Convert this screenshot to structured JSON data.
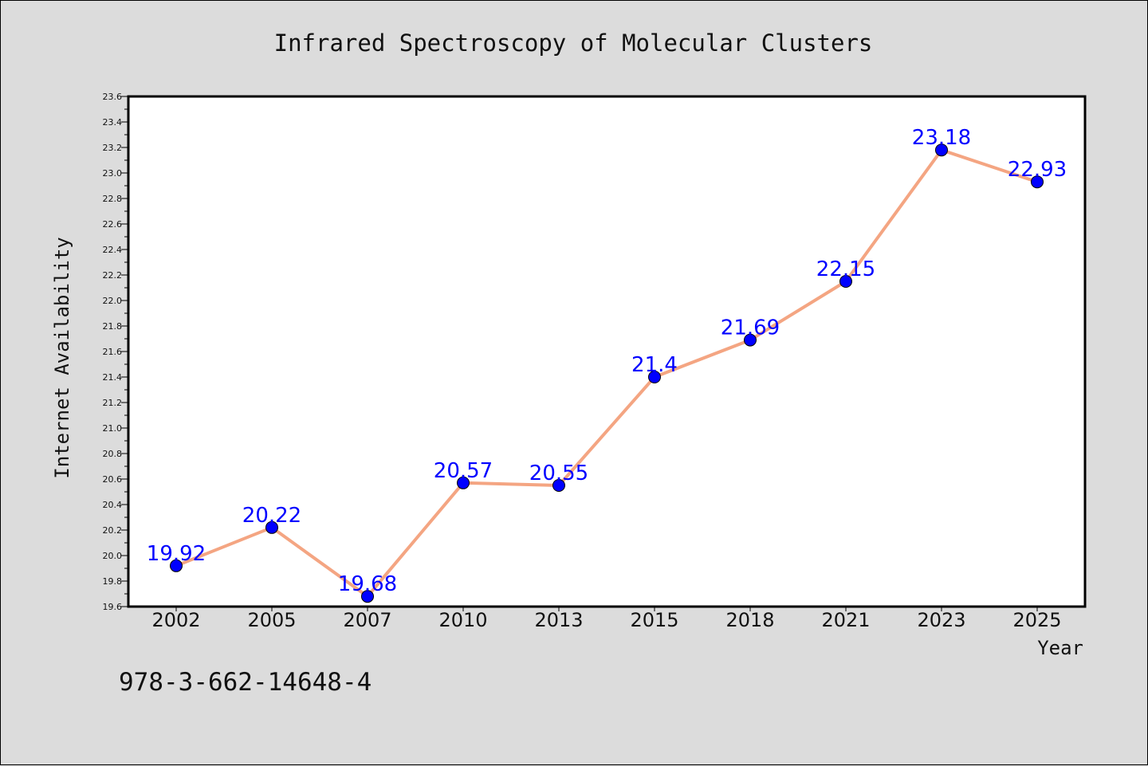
{
  "chart_data": {
    "type": "line",
    "title": "Infrared Spectroscopy of Molecular Clusters",
    "xlabel": "Year",
    "ylabel": "Internet Availability",
    "categories": [
      "2002",
      "2005",
      "2007",
      "2010",
      "2013",
      "2015",
      "2018",
      "2021",
      "2023",
      "2025"
    ],
    "values": [
      19.92,
      20.22,
      19.68,
      20.57,
      20.55,
      21.4,
      21.69,
      22.15,
      23.18,
      22.93
    ],
    "data_labels": [
      "19.92",
      "20.22",
      "19.68",
      "20.57",
      "20.55",
      "21.4",
      "21.69",
      "22.15",
      "23.18",
      "22.93"
    ],
    "ylim": [
      19.6,
      23.6
    ],
    "yticks": [
      "19.6",
      "19.8",
      "20.0",
      "20.2",
      "20.4",
      "20.6",
      "20.8",
      "21.0",
      "21.2",
      "21.4",
      "21.6",
      "21.8",
      "22.0",
      "22.2",
      "22.4",
      "22.6",
      "22.8",
      "23.0",
      "23.2",
      "23.4",
      "23.6"
    ],
    "grid": false,
    "line_color": "#f4a582",
    "marker_color": "#0000ff",
    "label_color": "#0000ff"
  },
  "annotation": {
    "isbn": "978-3-662-14648-4"
  }
}
